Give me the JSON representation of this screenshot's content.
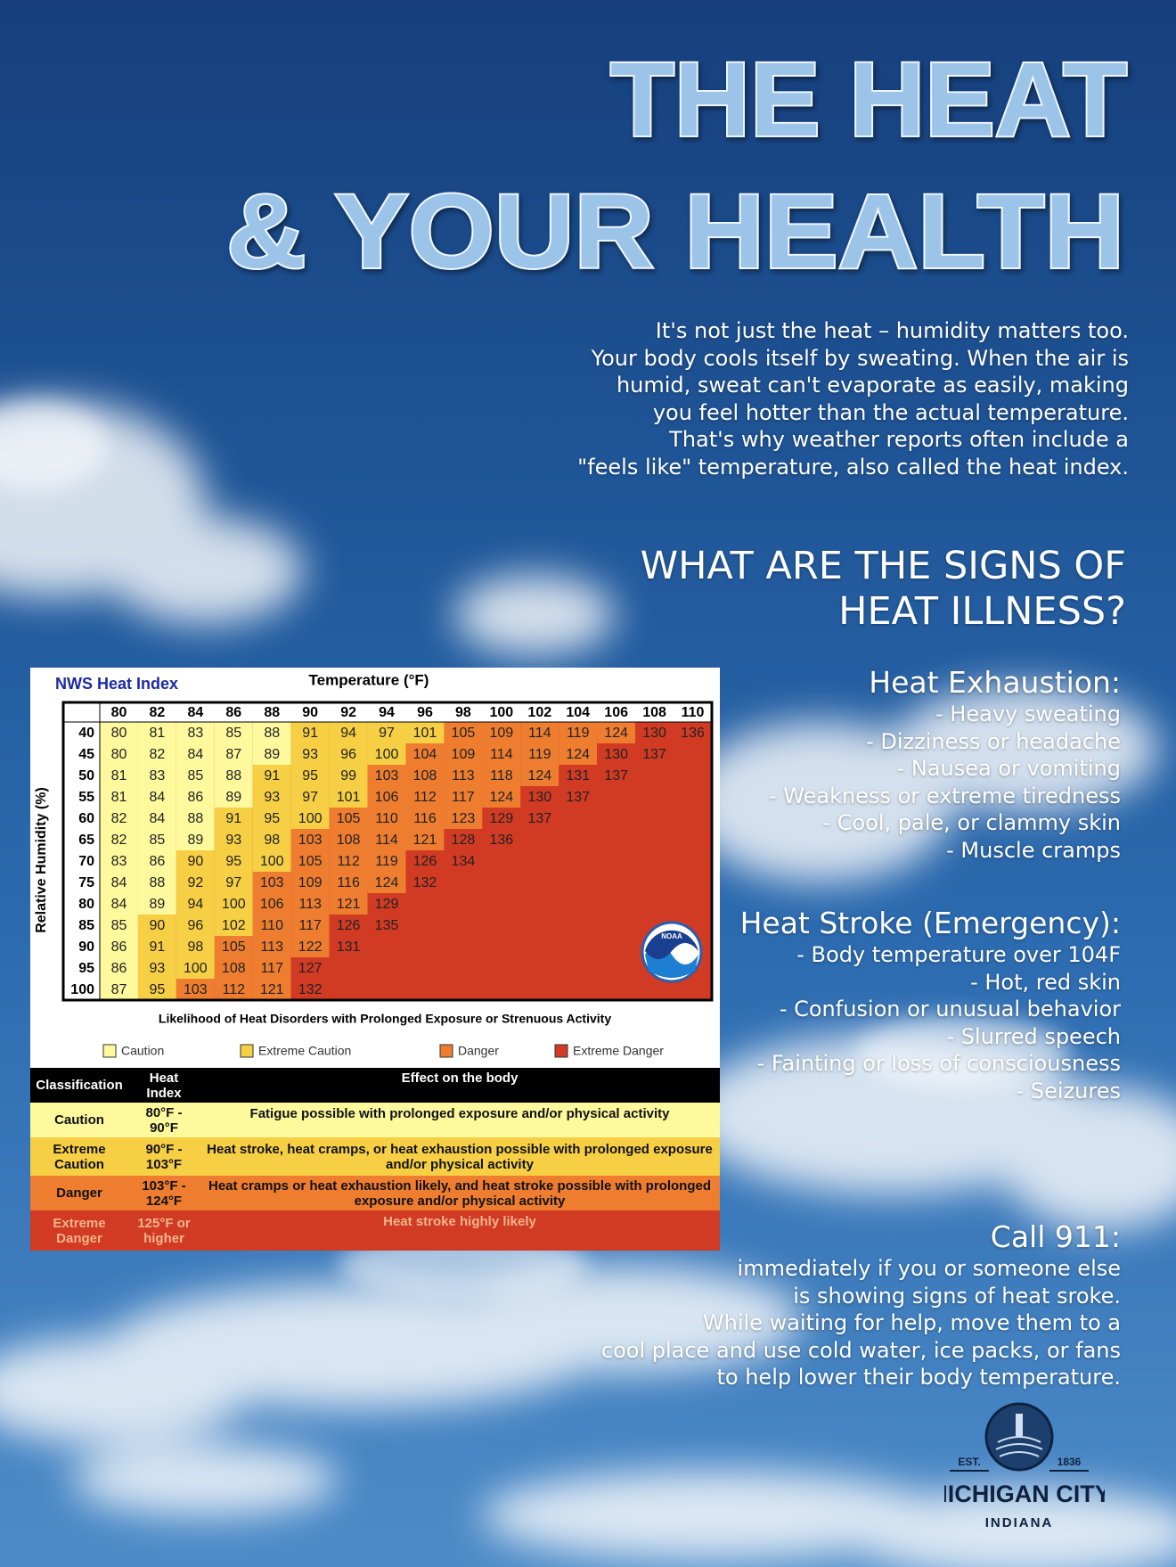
{
  "title": {
    "line1": "THE HEAT",
    "line2": "& YOUR HEALTH"
  },
  "intro": [
    "It's not just the heat – humidity matters too.",
    "Your body cools itself by sweating. When the air is",
    "humid, sweat can't evaporate as easily, making",
    "you feel hotter than the actual temperature.",
    "That's why weather reports often include a",
    "\"feels like\" temperature, also called the heat index."
  ],
  "signs_heading": [
    "WHAT ARE THE SIGNS OF",
    "HEAT ILLNESS?"
  ],
  "heat_exhaustion": {
    "title": "Heat Exhaustion:",
    "items": [
      "- Heavy sweating",
      "- Dizziness or headache",
      "- Nausea or vomiting",
      "- Weakness or extreme tiredness",
      "- Cool, pale, or clammy skin",
      "- Muscle cramps"
    ]
  },
  "heat_stroke": {
    "title": "Heat Stroke (Emergency):",
    "items": [
      "- Body temperature over 104F",
      "- Hot, red skin",
      "- Confusion or unusual behavior",
      "- Slurred speech",
      "- Fainting or loss of consciousness",
      "- Seizures"
    ]
  },
  "call_911": {
    "title": "Call 911:",
    "lines": [
      "immediately if you or someone else",
      "is showing signs of heat sroke.",
      "While waiting for help, move them to a",
      "cool place and use cold water, ice packs, or fans",
      "to help lower their body temperature."
    ]
  },
  "logo": {
    "est": "EST.",
    "year": "1836",
    "name": "MICHIGAN CITY",
    "state": "INDIANA"
  },
  "heat_index_chart": {
    "title": "NWS Heat Index",
    "x_label": "Temperature (°F)",
    "y_label": "Relative Humidity (%)",
    "temperatures": [
      80,
      82,
      84,
      86,
      88,
      90,
      92,
      94,
      96,
      98,
      100,
      102,
      104,
      106,
      108,
      110
    ],
    "rows": [
      {
        "humidity": 40,
        "values": [
          80,
          81,
          83,
          85,
          88,
          91,
          94,
          97,
          101,
          105,
          109,
          114,
          119,
          124,
          130,
          136
        ]
      },
      {
        "humidity": 45,
        "values": [
          80,
          82,
          84,
          87,
          89,
          93,
          96,
          100,
          104,
          109,
          114,
          119,
          124,
          130,
          137
        ]
      },
      {
        "humidity": 50,
        "values": [
          81,
          83,
          85,
          88,
          91,
          95,
          99,
          103,
          108,
          113,
          118,
          124,
          131,
          137
        ]
      },
      {
        "humidity": 55,
        "values": [
          81,
          84,
          86,
          89,
          93,
          97,
          101,
          106,
          112,
          117,
          124,
          130,
          137
        ]
      },
      {
        "humidity": 60,
        "values": [
          82,
          84,
          88,
          91,
          95,
          100,
          105,
          110,
          116,
          123,
          129,
          137
        ]
      },
      {
        "humidity": 65,
        "values": [
          82,
          85,
          89,
          93,
          98,
          103,
          108,
          114,
          121,
          128,
          136
        ]
      },
      {
        "humidity": 70,
        "values": [
          83,
          86,
          90,
          95,
          100,
          105,
          112,
          119,
          126,
          134
        ]
      },
      {
        "humidity": 75,
        "values": [
          84,
          88,
          92,
          97,
          103,
          109,
          116,
          124,
          132
        ]
      },
      {
        "humidity": 80,
        "values": [
          84,
          89,
          94,
          100,
          106,
          113,
          121,
          129
        ]
      },
      {
        "humidity": 85,
        "values": [
          85,
          90,
          96,
          102,
          110,
          117,
          126,
          135
        ]
      },
      {
        "humidity": 90,
        "values": [
          86,
          91,
          98,
          105,
          113,
          122,
          131
        ]
      },
      {
        "humidity": 95,
        "values": [
          86,
          93,
          100,
          108,
          117,
          127
        ]
      },
      {
        "humidity": 100,
        "values": [
          87,
          95,
          103,
          112,
          121,
          132
        ]
      }
    ],
    "caption": "Likelihood of Heat Disorders with Prolonged Exposure or Strenuous Activity",
    "noaa": "NOAA",
    "legend": [
      {
        "name": "Caution",
        "color": "#fdf99c",
        "min": 80
      },
      {
        "name": "Extreme Caution",
        "color": "#f6cf45",
        "min": 90
      },
      {
        "name": "Danger",
        "color": "#ee7d30",
        "min": 103
      },
      {
        "name": "Extreme Danger",
        "color": "#d13a23",
        "min": 125
      }
    ]
  },
  "classification_table": {
    "headers": [
      "Classification",
      "Heat Index",
      "Effect on the body"
    ],
    "rows": [
      [
        "Caution",
        "80°F - 90°F",
        "Fatigue possible with prolonged exposure and/or physical activity"
      ],
      [
        "Extreme Caution",
        "90°F - 103°F",
        "Heat stroke, heat cramps, or heat exhaustion possible with prolonged exposure and/or physical activity"
      ],
      [
        "Danger",
        "103°F - 124°F",
        "Heat cramps or heat exhaustion likely, and heat stroke possible with prolonged exposure and/or physical activity"
      ],
      [
        "Extreme Danger",
        "125°F or higher",
        "Heat stroke highly likely"
      ]
    ]
  }
}
